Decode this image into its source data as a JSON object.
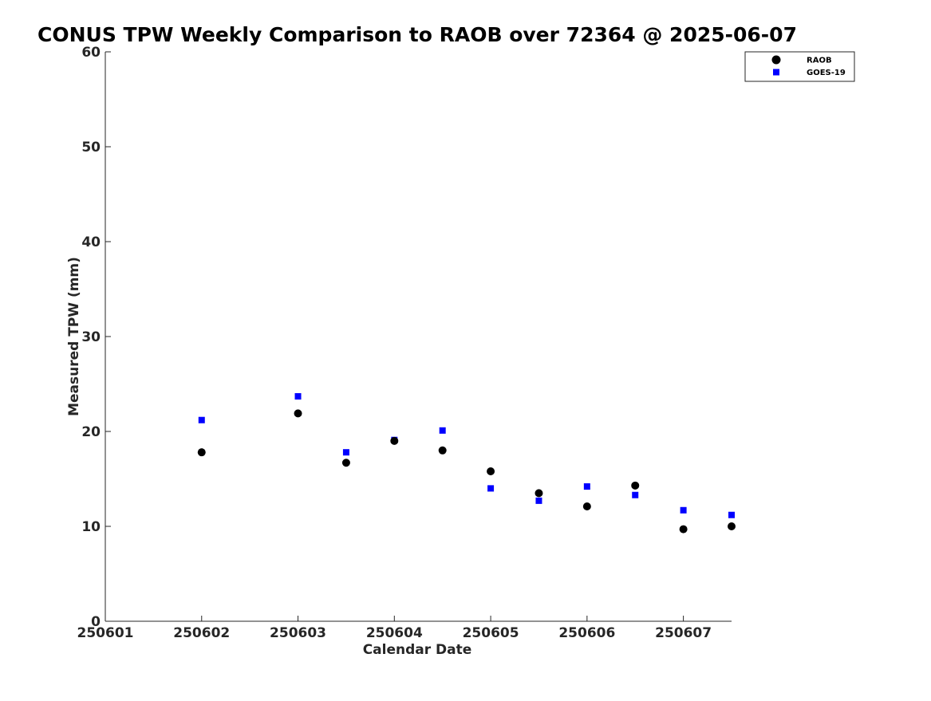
{
  "chart_data": {
    "type": "scatter",
    "title": "CONUS TPW Weekly Comparison to RAOB over 72364 @ 2025-06-07",
    "xlabel": "Calendar Date",
    "ylabel": "Measured TPW (mm)",
    "xlim": [
      1,
      7.5
    ],
    "ylim": [
      0,
      60
    ],
    "xticks": [
      1,
      2,
      3,
      4,
      5,
      6,
      7
    ],
    "xtick_labels": [
      "250601",
      "250602",
      "250603",
      "250604",
      "250605",
      "250606",
      "250607"
    ],
    "yticks": [
      0,
      10,
      20,
      30,
      40,
      50,
      60
    ],
    "ytick_labels": [
      "0",
      "10",
      "20",
      "30",
      "40",
      "50",
      "60"
    ],
    "grid": false,
    "legend_position": "top-right",
    "series": [
      {
        "name": "RAOB",
        "marker": "circle",
        "color": "#000000",
        "x": [
          2,
          3,
          3.5,
          4,
          4.5,
          5,
          5.5,
          6,
          6.5,
          7,
          7.5
        ],
        "values": [
          17.8,
          21.9,
          16.7,
          19.0,
          18.0,
          15.8,
          13.5,
          12.1,
          14.3,
          9.7,
          10.0
        ]
      },
      {
        "name": "GOES-19",
        "marker": "square",
        "color": "#0000ff",
        "x": [
          2,
          3,
          3.5,
          4,
          4.5,
          5,
          5.5,
          6,
          6.5,
          7,
          7.5
        ],
        "values": [
          21.2,
          23.7,
          17.8,
          19.1,
          20.1,
          14.0,
          12.7,
          14.2,
          13.3,
          11.7,
          11.2
        ]
      }
    ]
  }
}
